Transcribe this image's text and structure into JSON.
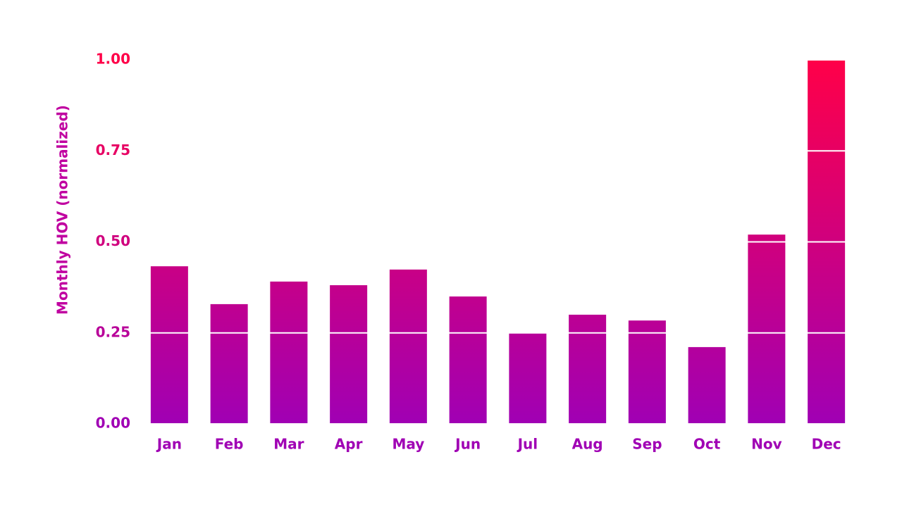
{
  "chart_data": {
    "type": "bar",
    "y_label": "Monthly HOV (normalized)",
    "categories": [
      "Jan",
      "Feb",
      "Mar",
      "Apr",
      "May",
      "Jun",
      "Jul",
      "Aug",
      "Sep",
      "Oct",
      "Nov",
      "Dec"
    ],
    "values": [
      0.433,
      0.329,
      0.391,
      0.381,
      0.424,
      0.35,
      0.25,
      0.3,
      0.284,
      0.211,
      0.52,
      1.0
    ],
    "color_gradient": [
      "#a000b4",
      "#ff0048"
    ],
    "ylim": [
      0,
      1
    ],
    "yticks": [
      {
        "value": 0,
        "label": "0.00"
      },
      {
        "value": 0.25,
        "label": "0.25"
      },
      {
        "value": 0.5,
        "label": "0.50"
      },
      {
        "value": 0.75,
        "label": "0.75"
      },
      {
        "value": 1,
        "label": "1.00"
      }
    ],
    "grid": true
  }
}
